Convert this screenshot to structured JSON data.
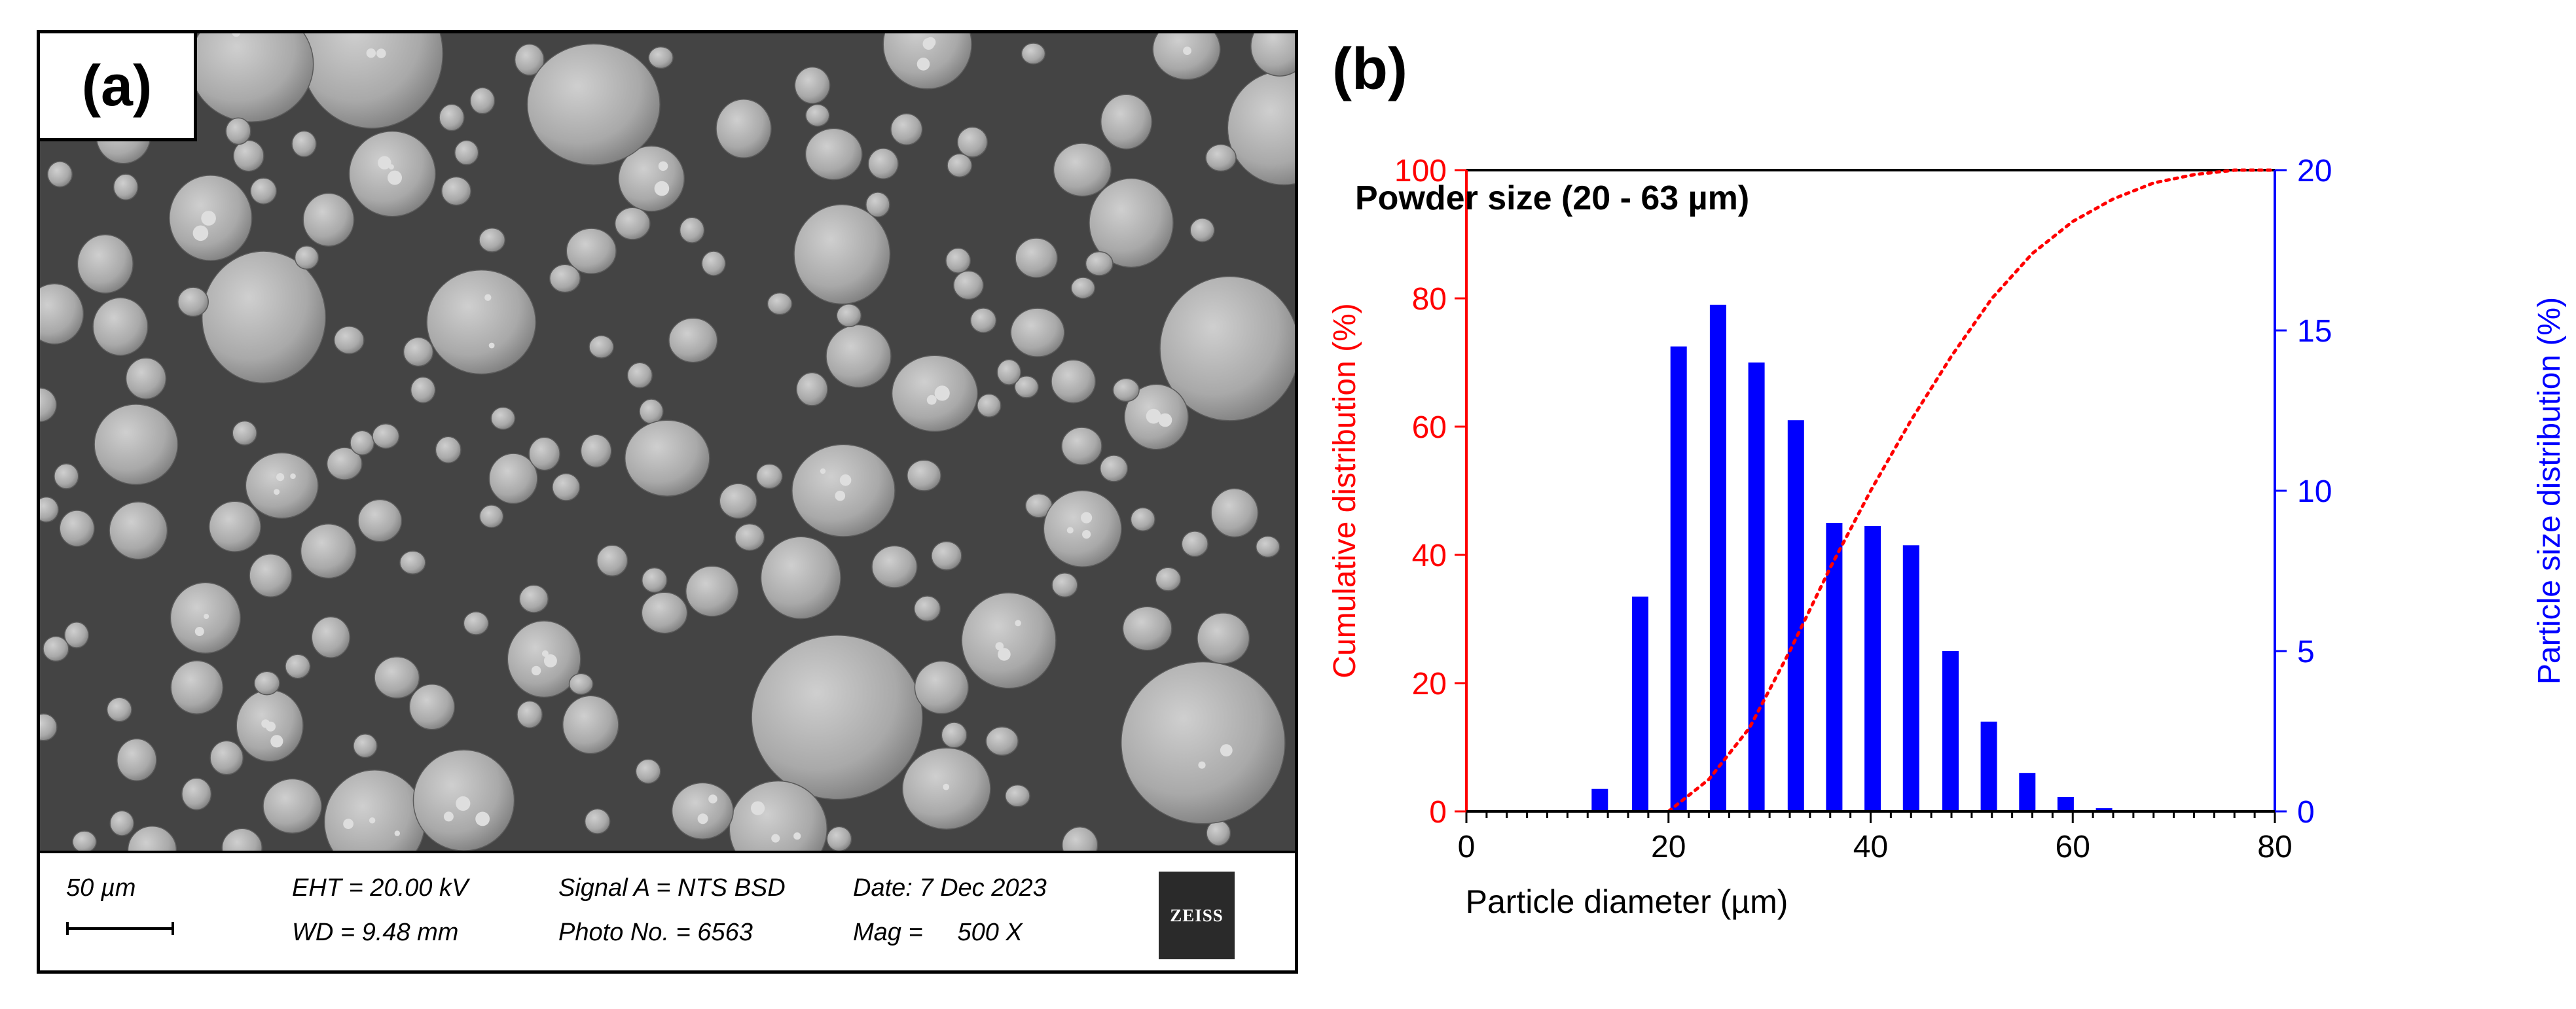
{
  "panel_a": {
    "label": "(a)",
    "databar": {
      "scale": "50 µm",
      "eht": "EHT = 20.00 kV",
      "wd": "WD = 9.48 mm",
      "signal": "Signal A = NTS BSD",
      "photo": "Photo No. = 6563",
      "date": "Date: 7 Dec 2023",
      "mag": "Mag =     500 X",
      "logo": "ZEISS"
    }
  },
  "panel_b": {
    "label": "(b)"
  },
  "chart_data": {
    "type": "bar",
    "title": "Powder size (20 - 63 µm)",
    "xlabel": "Particle diameter (µm)",
    "ylabel_left": "Cumulative distribution (%)",
    "ylabel_right": "Particle size distribution (%)",
    "xlim": [
      0,
      80
    ],
    "ylim_left": [
      0,
      100
    ],
    "ylim_right": [
      0,
      20
    ],
    "xticks": [
      0,
      20,
      40,
      60,
      80
    ],
    "yticks_left": [
      0,
      20,
      40,
      60,
      80,
      100
    ],
    "yticks_right": [
      0,
      5,
      10,
      15,
      20
    ],
    "grid": false,
    "bar_color": "#0000ff",
    "cumulative_color": "#ff0000",
    "bars": {
      "x": [
        13.2,
        17.2,
        21.0,
        24.9,
        28.7,
        32.6,
        36.4,
        40.2,
        44.0,
        47.9,
        51.7,
        55.5,
        59.3,
        63.1
      ],
      "values": [
        0.7,
        6.7,
        14.5,
        15.8,
        14.0,
        12.2,
        9.0,
        8.9,
        8.3,
        5.0,
        2.8,
        1.2,
        0.45,
        0.1
      ]
    },
    "cumulative": {
      "x": [
        20,
        24,
        28,
        32,
        36,
        40,
        44,
        48,
        52,
        56,
        60,
        64,
        68,
        72,
        76,
        78,
        80
      ],
      "values": [
        0,
        5,
        13,
        25,
        38,
        50,
        61,
        71,
        80,
        87,
        92,
        95.5,
        98,
        99.3,
        100,
        100,
        100
      ]
    }
  }
}
